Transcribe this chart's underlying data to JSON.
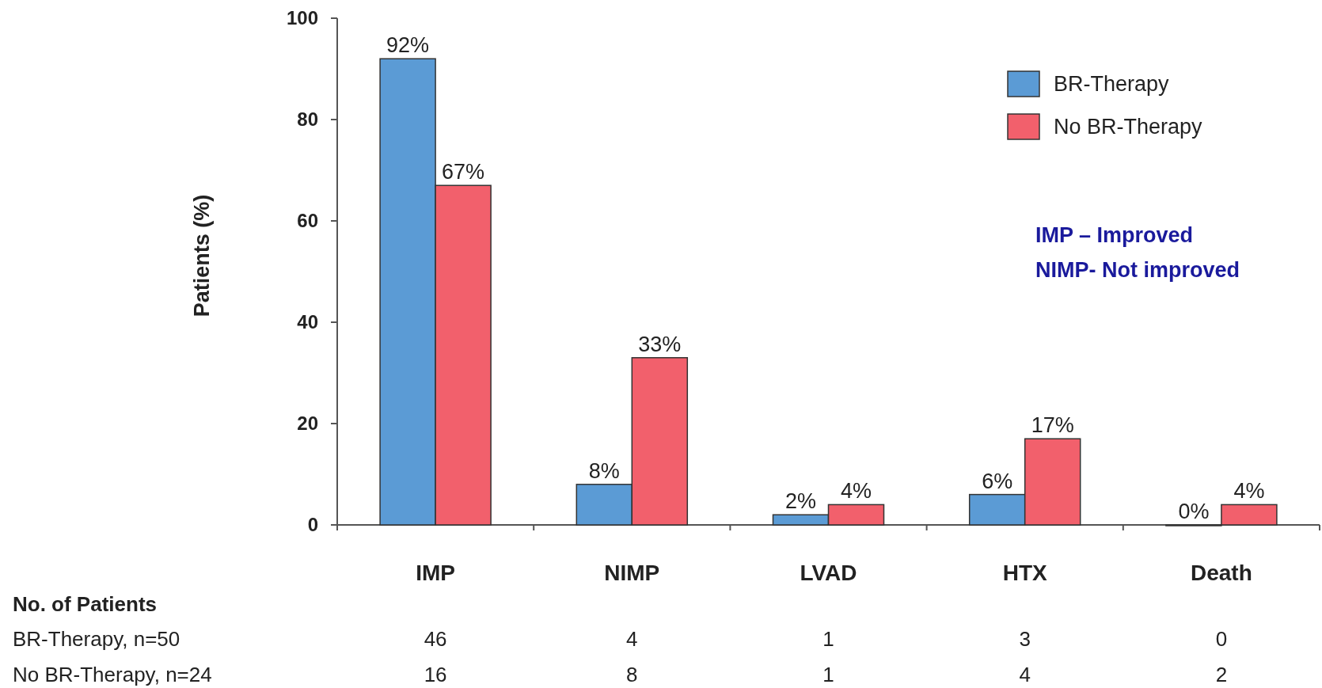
{
  "chart_data": {
    "type": "bar",
    "ylabel": "Patients (%)",
    "categories": [
      "IMP",
      "NIMP",
      "LVAD",
      "HTX",
      "Death"
    ],
    "series": [
      {
        "name": "BR-Therapy",
        "color": "#5b9bd5",
        "values": [
          92,
          8,
          2,
          6,
          0
        ],
        "value_labels": [
          "92%",
          "8%",
          "2%",
          "6%",
          "0%"
        ]
      },
      {
        "name": "No BR-Therapy",
        "color": "#f2606c",
        "values": [
          67,
          33,
          4,
          17,
          4
        ],
        "value_labels": [
          "67%",
          "33%",
          "4%",
          "17%",
          "4%"
        ]
      }
    ],
    "ylim": [
      0,
      100
    ],
    "yticks": [
      0,
      20,
      40,
      60,
      80,
      100
    ],
    "grid": false,
    "legend": "top right",
    "annotations": [
      "IMP – Improved",
      "NIMP- Not improved",
      "No. of Patients",
      "BR-Therapy, n=50",
      "46",
      "4",
      "1",
      "3",
      "0",
      "No BR-Therapy, n=24",
      "16",
      "8",
      "1",
      "4",
      "2"
    ]
  }
}
